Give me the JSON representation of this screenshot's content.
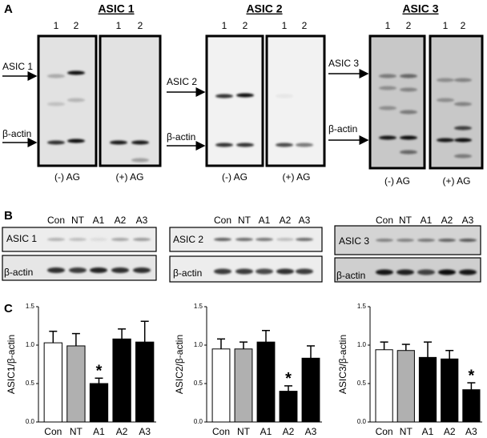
{
  "panel_labels": [
    "A",
    "B",
    "C"
  ],
  "panel_a": [
    {
      "title": "ASIC 1",
      "lanes": [
        "1",
        "2"
      ],
      "target": "ASIC 1",
      "control": "β-actin",
      "conditions": [
        "(-) AG",
        "(+) AG"
      ]
    },
    {
      "title": "ASIC 2",
      "lanes": [
        "1",
        "2"
      ],
      "target": "ASIC 2",
      "control": "β-actin",
      "conditions": [
        "(-) AG",
        "(+) AG"
      ]
    },
    {
      "title": "ASIC 3",
      "lanes": [
        "1",
        "2"
      ],
      "target": "ASIC 3",
      "control": "β-actin",
      "conditions": [
        "(-) AG",
        "(+) AG"
      ]
    }
  ],
  "panel_b": [
    {
      "lanes": [
        "Con",
        "NT",
        "A1",
        "A2",
        "A3"
      ],
      "rows": [
        "ASIC 1",
        "β-actin"
      ]
    },
    {
      "lanes": [
        "Con",
        "NT",
        "A1",
        "A2",
        "A3"
      ],
      "rows": [
        "ASIC 2",
        "β-actin"
      ]
    },
    {
      "lanes": [
        "Con",
        "NT",
        "A1",
        "A2",
        "A3"
      ],
      "rows": [
        "ASIC 3",
        "β-actin"
      ]
    }
  ],
  "chart_data": [
    {
      "type": "bar",
      "ylabel": "ASIC1/β-actin",
      "categories": [
        "Con",
        "NT",
        "A1",
        "A2",
        "A3"
      ],
      "values": [
        1.03,
        0.99,
        0.5,
        1.08,
        1.04
      ],
      "errors": [
        0.15,
        0.16,
        0.07,
        0.13,
        0.27
      ],
      "colors": [
        "#ffffff",
        "#b0b0b0",
        "#000000",
        "#000000",
        "#000000"
      ],
      "ylim": [
        0,
        1.5
      ],
      "yticks": [
        {
          "value": 0,
          "label": "0.0"
        },
        0.5,
        {
          "value": 1,
          "label": "1.0"
        },
        1.5
      ],
      "annotation": {
        "text": "*",
        "category": "A1"
      }
    },
    {
      "type": "bar",
      "ylabel": "ASIC2/β-actin",
      "categories": [
        "Con",
        "NT",
        "A1",
        "A2",
        "A3"
      ],
      "values": [
        0.95,
        0.95,
        1.04,
        0.4,
        0.83
      ],
      "errors": [
        0.13,
        0.09,
        0.15,
        0.07,
        0.16
      ],
      "colors": [
        "#ffffff",
        "#b0b0b0",
        "#000000",
        "#000000",
        "#000000"
      ],
      "ylim": [
        0,
        1.5
      ],
      "yticks": [
        {
          "value": 0,
          "label": "0.0"
        },
        0.5,
        {
          "value": 1,
          "label": "1.0"
        },
        1.5
      ],
      "annotation": {
        "text": "*",
        "category": "A2"
      }
    },
    {
      "type": "bar",
      "ylabel": "ASIC3/β-actin",
      "categories": [
        "Con",
        "NT",
        "A1",
        "A2",
        "A3"
      ],
      "values": [
        0.94,
        0.93,
        0.84,
        0.82,
        0.42
      ],
      "errors": [
        0.1,
        0.08,
        0.2,
        0.11,
        0.09
      ],
      "colors": [
        "#ffffff",
        "#b0b0b0",
        "#000000",
        "#000000",
        "#000000"
      ],
      "ylim": [
        0,
        1.5
      ],
      "yticks": [
        {
          "value": 0,
          "label": "0.0"
        },
        0.5,
        {
          "value": 1,
          "label": "1.0"
        },
        1.5
      ],
      "annotation": {
        "text": "*",
        "category": "A3"
      }
    }
  ]
}
